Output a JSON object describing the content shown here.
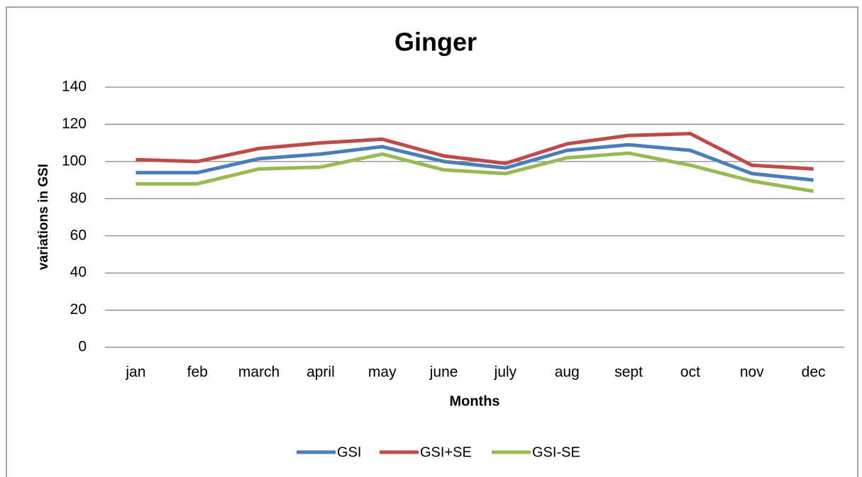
{
  "chart_data": {
    "type": "line",
    "title": "Ginger",
    "x_label": "Months",
    "y_label": "variations in GSI",
    "categories": [
      "jan",
      "feb",
      "march",
      "april",
      "may",
      "june",
      "july",
      "aug",
      "sept",
      "oct",
      "nov",
      "dec"
    ],
    "series": [
      {
        "name": "GSI",
        "color": "#4a7ebb",
        "values": [
          94,
          94,
          101.5,
          104,
          108,
          100,
          96.5,
          106,
          109,
          106,
          93.5,
          90
        ]
      },
      {
        "name": "GSI+SE",
        "color": "#be4b48",
        "values": [
          101,
          100,
          107,
          110,
          112,
          103,
          99,
          109.5,
          114,
          115,
          98,
          96
        ]
      },
      {
        "name": "GSI-SE",
        "color": "#98b954",
        "values": [
          88,
          88,
          96,
          97,
          104,
          95.5,
          93.5,
          102,
          104.5,
          98,
          89.5,
          84
        ]
      }
    ],
    "ylim": [
      0,
      140
    ],
    "yticks": [
      0,
      20,
      40,
      60,
      80,
      100,
      120,
      140
    ],
    "grid": true,
    "legend": "bottom"
  }
}
